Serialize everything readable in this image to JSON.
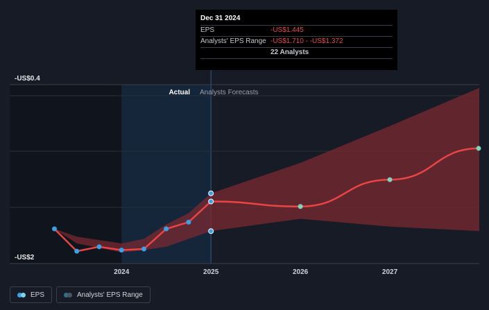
{
  "tooltip": {
    "date": "Dec 31 2024",
    "eps_label": "EPS",
    "eps_value": "-US$1.445",
    "range_label": "Analysts' EPS Range",
    "range_value": "-US$1.710 - -US$1.372",
    "analysts": "22 Analysts"
  },
  "sections": {
    "actual": "Actual",
    "forecast": "Analysts Forecasts"
  },
  "legend": {
    "eps": "EPS",
    "range": "Analysts' EPS Range"
  },
  "colors": {
    "background": "#161b26",
    "past_shade": "#10141c",
    "highlight": "#16263a",
    "eps_line": "#e84545",
    "range_fill": "#7a2a30",
    "eps_dot": "#3aa0e8",
    "forecast_dot": "#7fd3b8",
    "grid": "#2b303b"
  },
  "chart_data": {
    "type": "line",
    "y_axis_labels": [
      "-US$0.4",
      "-US$2"
    ],
    "ylim": [
      -2.0,
      -0.4
    ],
    "x_ticks": [
      "2024",
      "2025",
      "2026",
      "2027"
    ],
    "x_tick_values": [
      2024.0,
      2025.0,
      2026.0,
      2027.0
    ],
    "xlim": [
      2022.75,
      2028.0
    ],
    "divider_x": 2025.0,
    "highlight_from": 2024.0,
    "series": [
      {
        "name": "EPS",
        "kind": "actual",
        "points": [
          [
            2023.25,
            -1.69
          ],
          [
            2023.5,
            -1.89
          ],
          [
            2023.75,
            -1.85
          ],
          [
            2024.0,
            -1.88
          ],
          [
            2024.25,
            -1.87
          ],
          [
            2024.5,
            -1.69
          ],
          [
            2024.75,
            -1.63
          ],
          [
            2025.0,
            -1.445
          ]
        ]
      },
      {
        "name": "EPS",
        "kind": "forecast",
        "points": [
          [
            2025.0,
            -1.445
          ],
          [
            2026.0,
            -1.49
          ],
          [
            2027.0,
            -1.25
          ],
          [
            2028.0,
            -0.97
          ]
        ]
      },
      {
        "name": "Analysts' EPS Range",
        "kind": "range",
        "points": [
          [
            2023.25,
            -1.69,
            -1.69
          ],
          [
            2023.5,
            -1.76,
            -1.82
          ],
          [
            2023.75,
            -1.79,
            -1.86
          ],
          [
            2024.0,
            -1.82,
            -1.9
          ],
          [
            2024.25,
            -1.78,
            -1.88
          ],
          [
            2024.5,
            -1.65,
            -1.85
          ],
          [
            2024.75,
            -1.55,
            -1.78
          ],
          [
            2025.0,
            -1.372,
            -1.71
          ],
          [
            2026.0,
            -1.1,
            -1.6
          ],
          [
            2027.0,
            -0.77,
            -1.67
          ],
          [
            2028.0,
            -0.43,
            -1.71
          ]
        ]
      }
    ],
    "range_end_dots": [
      -1.372,
      -1.71
    ]
  }
}
